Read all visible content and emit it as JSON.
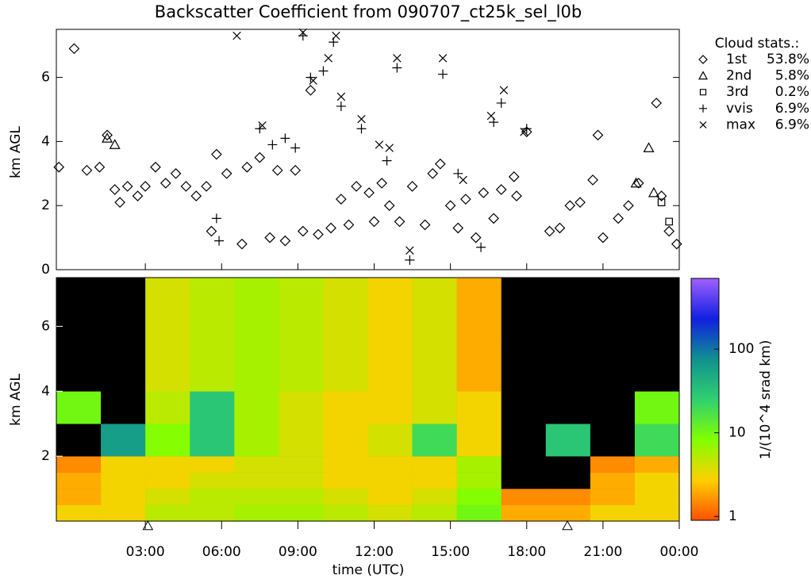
{
  "chart_data": [
    {
      "type": "scatter",
      "title": "Backscatter Coefficient from 090707_ct25k_sel_l0b",
      "ylabel": "km AGL",
      "xlim": [
        -0.5,
        24
      ],
      "xticks": [
        3,
        6,
        9,
        12,
        15,
        18,
        21,
        24
      ],
      "ylim": [
        0,
        7.5
      ],
      "yticks": [
        0,
        2,
        4,
        6
      ],
      "legend_title": "Cloud stats.:",
      "series": [
        {
          "name": "1st",
          "marker": "diamond",
          "color": "#000000",
          "percent_label": "53.8%",
          "x": [
            -0.4,
            0.2,
            0.7,
            1.2,
            1.5,
            1.8,
            2.0,
            2.3,
            2.7,
            3.0,
            3.4,
            3.8,
            4.2,
            4.6,
            5.0,
            5.4,
            5.6,
            5.8,
            6.2,
            6.8,
            7.0,
            7.5,
            7.9,
            8.2,
            8.5,
            8.9,
            9.2,
            9.5,
            9.8,
            10.3,
            10.7,
            11.0,
            11.3,
            11.8,
            12.0,
            12.3,
            12.6,
            13.0,
            13.5,
            14.0,
            14.3,
            14.6,
            15.0,
            15.3,
            15.6,
            16.0,
            16.3,
            16.7,
            17.0,
            17.5,
            17.6,
            18.0,
            18.9,
            19.3,
            19.7,
            20.1,
            20.6,
            20.8,
            21.0,
            21.6,
            22.0,
            22.4,
            23.1,
            23.3,
            23.6,
            23.9
          ],
          "y": [
            3.2,
            6.9,
            3.1,
            3.2,
            4.2,
            2.5,
            2.1,
            2.6,
            2.3,
            2.6,
            3.2,
            2.7,
            3.0,
            2.6,
            2.3,
            2.6,
            1.2,
            3.6,
            3.0,
            0.8,
            3.2,
            3.5,
            1.0,
            3.1,
            0.9,
            3.1,
            1.2,
            5.6,
            1.1,
            1.3,
            2.2,
            1.4,
            2.6,
            2.4,
            1.5,
            2.7,
            2.0,
            1.5,
            2.6,
            1.4,
            3.0,
            3.3,
            2.0,
            1.3,
            2.2,
            1.0,
            2.4,
            1.6,
            2.5,
            2.9,
            2.3,
            4.3,
            1.2,
            1.3,
            2.0,
            2.1,
            2.8,
            4.2,
            1.0,
            1.6,
            2.0,
            2.7,
            5.2,
            2.3,
            1.2,
            0.8
          ]
        },
        {
          "name": "2nd",
          "marker": "triangle",
          "color": "#000000",
          "percent_label": "5.8%",
          "x": [
            1.5,
            1.8,
            22.3,
            22.8,
            23.0
          ],
          "y": [
            4.1,
            3.9,
            2.7,
            3.8,
            2.4
          ]
        },
        {
          "name": "3rd",
          "marker": "square",
          "color": "#000000",
          "percent_label": "0.2%",
          "x": [
            23.3,
            23.6
          ],
          "y": [
            2.1,
            1.5
          ]
        },
        {
          "name": "vvis",
          "marker": "plus",
          "color": "#000000",
          "percent_label": "6.9%",
          "x": [
            5.8,
            5.9,
            7.5,
            8.0,
            8.5,
            8.9,
            9.2,
            9.5,
            10.0,
            10.4,
            10.7,
            11.5,
            12.5,
            12.9,
            13.4,
            14.7,
            15.3,
            16.2,
            16.7,
            17.0,
            18.0
          ],
          "y": [
            1.6,
            0.9,
            4.4,
            3.9,
            4.1,
            3.8,
            7.3,
            6.0,
            6.2,
            7.1,
            5.1,
            4.4,
            3.4,
            6.3,
            0.3,
            6.1,
            3.0,
            0.7,
            4.6,
            5.2,
            4.4
          ]
        },
        {
          "name": "max",
          "marker": "cross",
          "color": "#000000",
          "percent_label": "6.9%",
          "x": [
            6.6,
            7.6,
            9.2,
            9.6,
            10.2,
            10.5,
            10.7,
            11.5,
            12.2,
            12.6,
            12.9,
            13.4,
            14.7,
            15.5,
            16.6,
            17.1,
            17.9
          ],
          "y": [
            7.3,
            4.5,
            7.4,
            5.9,
            6.6,
            7.3,
            5.4,
            4.7,
            3.9,
            3.8,
            6.6,
            0.6,
            6.6,
            2.8,
            4.8,
            5.6,
            4.3
          ]
        }
      ]
    },
    {
      "type": "heatmap",
      "ylabel": "km AGL",
      "xlabel": "time (UTC)",
      "xlim": [
        -0.5,
        24
      ],
      "xticks": [
        {
          "value": 3,
          "label": "03:00"
        },
        {
          "value": 6,
          "label": "06:00"
        },
        {
          "value": 9,
          "label": "09:00"
        },
        {
          "value": 12,
          "label": "12:00"
        },
        {
          "value": 15,
          "label": "15:00"
        },
        {
          "value": 18,
          "label": "18:00"
        },
        {
          "value": 21,
          "label": "21:00"
        },
        {
          "value": 24,
          "label": "00:00"
        }
      ],
      "ylim": [
        0,
        7.5
      ],
      "yticks": [
        2,
        4,
        6
      ],
      "x_edges": [
        -0.5,
        1.25,
        3,
        4.75,
        6.5,
        8.25,
        10,
        11.75,
        13.5,
        15.25,
        17,
        18.75,
        20.5,
        22.25,
        24
      ],
      "y_edges": [
        0,
        0.5,
        1,
        1.5,
        2,
        3,
        4,
        5.5,
        7.5
      ],
      "values": [
        [
          3,
          3,
          5,
          5,
          6,
          6,
          5,
          4,
          5,
          10,
          2,
          2,
          3,
          3
        ],
        [
          2,
          3,
          4,
          5,
          5,
          5,
          4,
          3,
          4,
          8,
          1.5,
          1.5,
          2,
          3
        ],
        [
          2,
          3,
          3,
          4,
          4,
          4,
          3,
          3,
          3,
          6,
          0.3,
          0.3,
          2,
          3
        ],
        [
          1.5,
          3,
          3,
          3,
          4,
          4,
          3,
          3,
          3,
          6,
          0.3,
          0.3,
          1.5,
          2
        ],
        [
          0.3,
          60,
          8,
          30,
          6,
          4,
          3,
          4,
          20,
          3,
          0.3,
          30,
          0.3,
          20
        ],
        [
          10,
          0.4,
          5,
          30,
          6,
          4,
          3,
          3,
          4,
          3,
          0.3,
          0.3,
          0.3,
          10
        ],
        [
          0.3,
          0.4,
          4,
          5,
          6,
          5,
          4,
          3,
          4,
          2,
          0.3,
          0.3,
          0.3,
          0.3
        ],
        [
          0.3,
          0.3,
          4,
          5,
          6,
          5,
          4,
          3,
          4,
          2,
          0.3,
          0.3,
          0.3,
          0.3
        ]
      ],
      "markers_x": [
        3.1,
        19.6
      ],
      "clim": [
        0.9,
        700
      ],
      "log_scale": true,
      "colorbar_label": "1/(10^4 srad km)",
      "colorbar_ticks": [
        1,
        10,
        100
      ],
      "colormap": [
        "#ff5000",
        "#ffd000",
        "#80ff00",
        "#30d070",
        "#109090",
        "#1020e0",
        "#a060ff"
      ]
    }
  ]
}
